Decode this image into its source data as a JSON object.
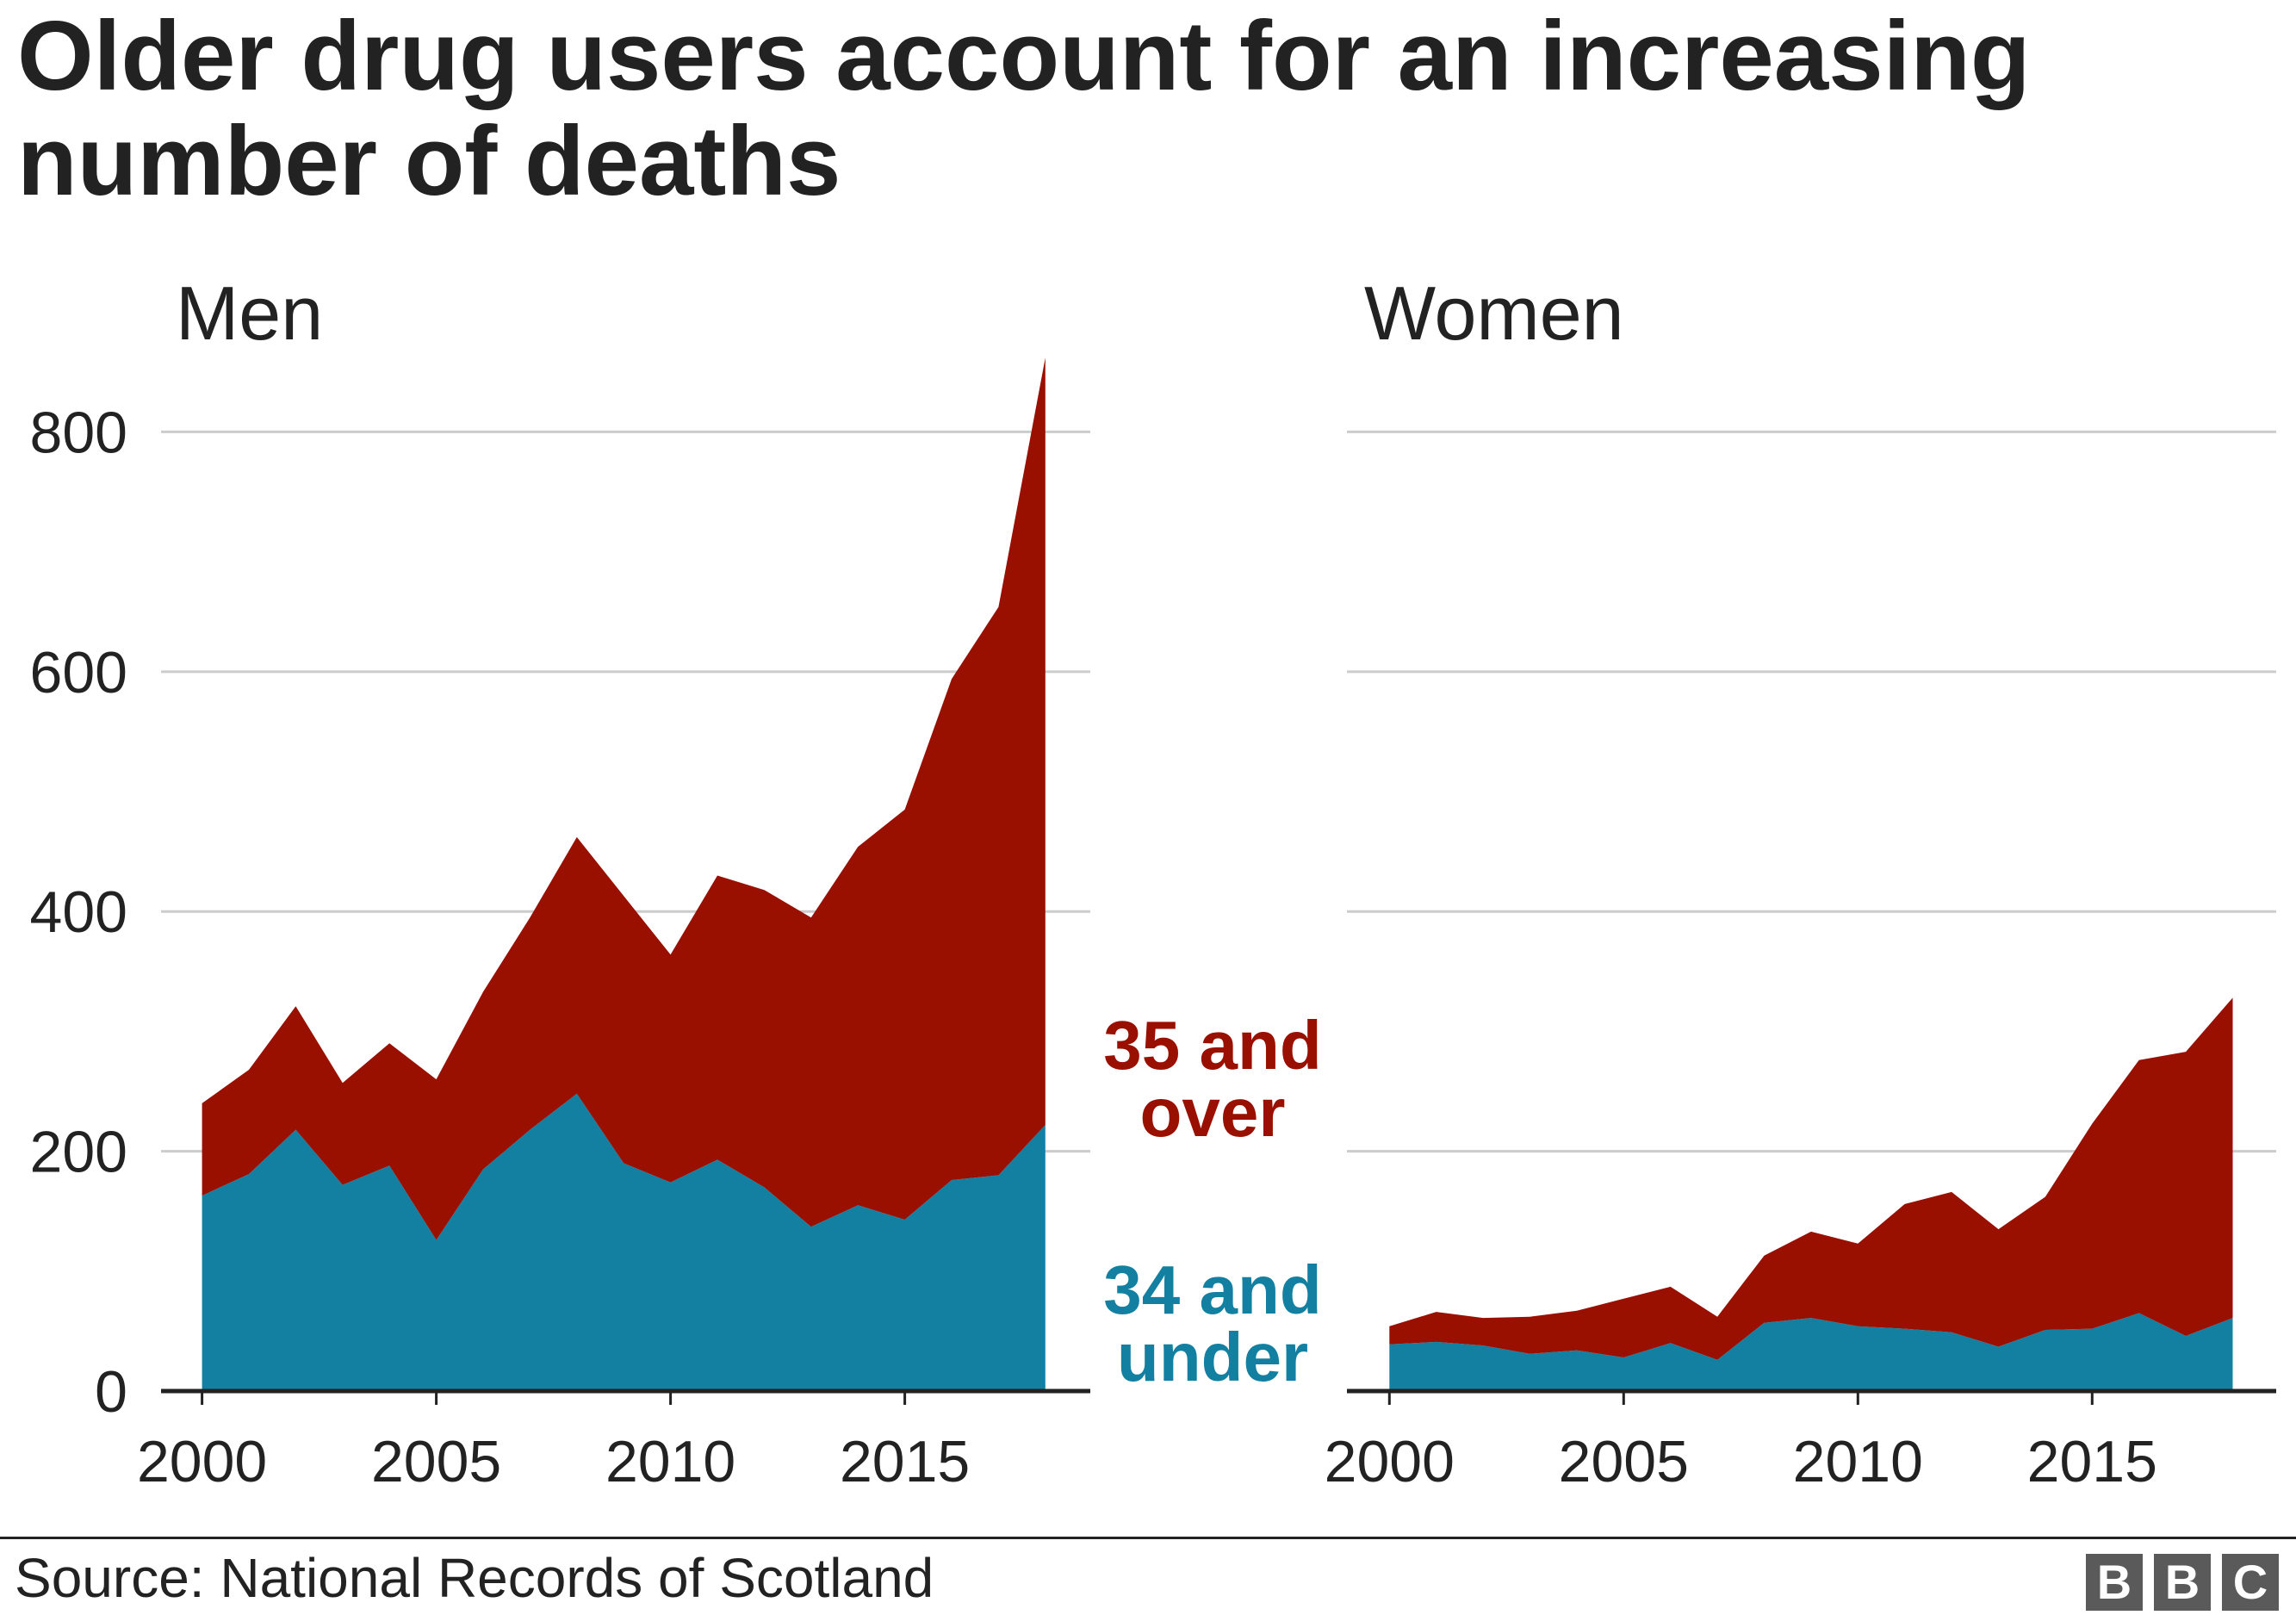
{
  "title": "Older drug users account for an increasing number of deaths",
  "source": "Source: National Records of Scotland",
  "logo": {
    "letters": [
      "B",
      "B",
      "C"
    ],
    "box_color": "#5a5a5a"
  },
  "chart_data": [
    {
      "type": "area",
      "stacked": true,
      "title": "Men",
      "x": [
        2000,
        2001,
        2002,
        2003,
        2004,
        2005,
        2006,
        2007,
        2008,
        2009,
        2010,
        2011,
        2012,
        2013,
        2014,
        2015,
        2016,
        2017,
        2018
      ],
      "xlim": [
        2000,
        2018
      ],
      "xticks": [
        2000,
        2005,
        2010,
        2015
      ],
      "xtick_labels": [
        "2000",
        "2005",
        "2010",
        "2015"
      ],
      "ylim": [
        0,
        870
      ],
      "yticks": [
        0,
        200,
        400,
        600,
        800
      ],
      "ytick_labels": [
        "0",
        "200",
        "400",
        "600",
        "800"
      ],
      "grid": true,
      "series": [
        {
          "name": "34 and under",
          "color": "#1380a1",
          "values": [
            163,
            181,
            218,
            172,
            188,
            126,
            185,
            218,
            248,
            190,
            174,
            193,
            170,
            137,
            155,
            143,
            176,
            180,
            222
          ]
        },
        {
          "name": "35 and over",
          "color": "#990f00",
          "values": [
            77,
            87,
            103,
            85,
            102,
            134,
            148,
            177,
            214,
            223,
            190,
            237,
            248,
            258,
            299,
            342,
            418,
            474,
            640
          ]
        }
      ]
    },
    {
      "type": "area",
      "stacked": true,
      "title": "Women",
      "x": [
        2000,
        2001,
        2002,
        2003,
        2004,
        2005,
        2006,
        2007,
        2008,
        2009,
        2010,
        2011,
        2012,
        2013,
        2014,
        2015,
        2016,
        2017,
        2018
      ],
      "xlim": [
        2000,
        2018
      ],
      "xticks": [
        2000,
        2005,
        2010,
        2015
      ],
      "xtick_labels": [
        "2000",
        "2005",
        "2010",
        "2015"
      ],
      "ylim": [
        0,
        870
      ],
      "yticks": [
        0,
        200,
        400,
        600,
        800
      ],
      "grid": true,
      "series": [
        {
          "name": "34 and under",
          "color": "#1380a1",
          "values": [
            39,
            41,
            38,
            31,
            34,
            28,
            40,
            26,
            57,
            61,
            54,
            52,
            49,
            37,
            51,
            52,
            65,
            46,
            61
          ]
        },
        {
          "name": "35 and over",
          "color": "#990f00",
          "values": [
            15,
            25,
            23,
            31,
            33,
            49,
            47,
            36,
            56,
            72,
            69,
            104,
            117,
            98,
            111,
            171,
            211,
            237,
            267
          ]
        }
      ]
    }
  ]
}
